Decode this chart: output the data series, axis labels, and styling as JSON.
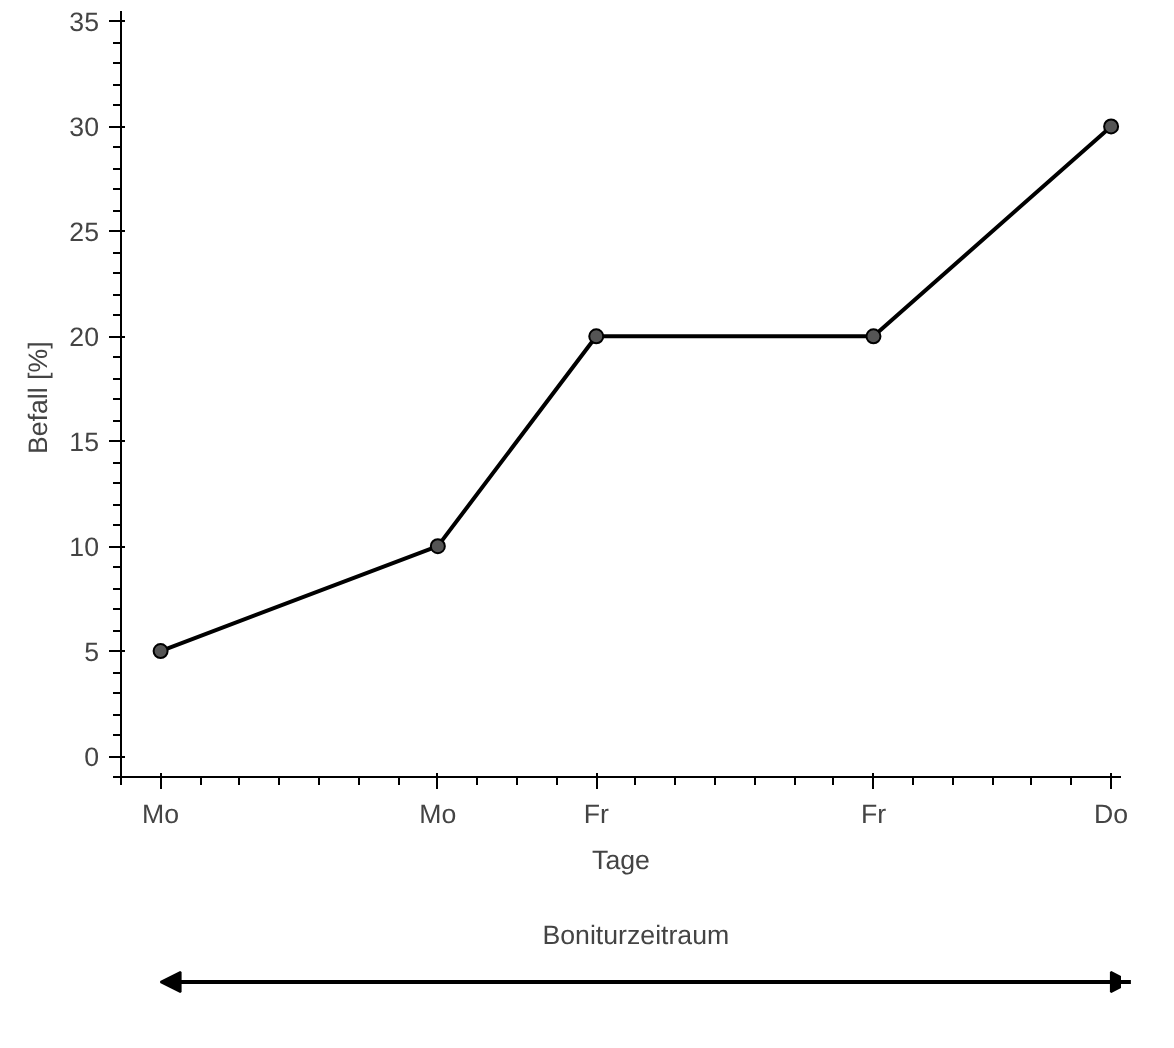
{
  "chart_data": {
    "type": "line",
    "xlabel": "Tage",
    "ylabel": "Befall  [%]",
    "categories": [
      "Mo",
      null,
      null,
      null,
      null,
      null,
      null,
      "Mo",
      null,
      null,
      null,
      "Fr",
      null,
      null,
      null,
      null,
      null,
      null,
      "Fr",
      null,
      null,
      null,
      null,
      null,
      "Do"
    ],
    "series": [
      {
        "color": "#000000",
        "values": [
          5,
          null,
          null,
          null,
          null,
          null,
          null,
          10,
          null,
          null,
          null,
          20,
          null,
          null,
          null,
          null,
          null,
          null,
          20,
          null,
          null,
          null,
          null,
          null,
          30
        ]
      }
    ],
    "ylim": [
      -1,
      35.5
    ],
    "yticks": [
      0,
      5,
      10,
      15,
      20,
      25,
      30,
      35
    ],
    "annotations": [
      "Boniturzeitraum"
    ],
    "marker": "circle",
    "line_style": "solid"
  }
}
